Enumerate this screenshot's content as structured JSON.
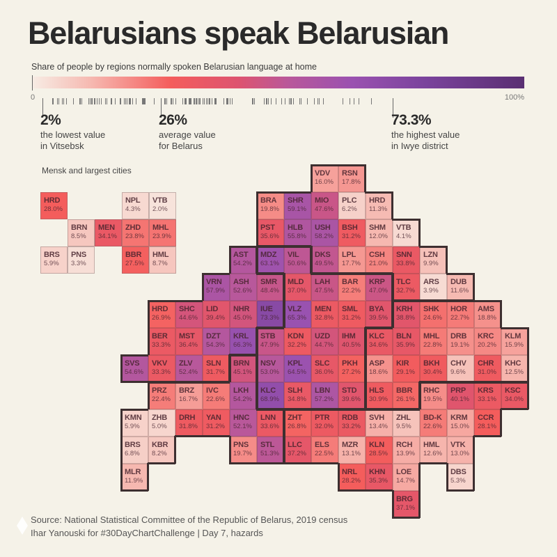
{
  "title": "Belarusians speak Belarusian",
  "subtitle": "Share of people by regions normally spoken Belarusian language at home",
  "scale": {
    "min_label": "0",
    "max_label": "100%",
    "min": 0,
    "max": 100,
    "colors": [
      "#f7ece4",
      "#f6b8b0",
      "#f45d5c",
      "#dd5470",
      "#b9589a",
      "#9a52b0",
      "#7a439c",
      "#5a2f72"
    ]
  },
  "annotations": [
    {
      "value": 2,
      "big": "2%",
      "line1": "the lowest value",
      "line2": "in Vitsebsk"
    },
    {
      "value": 26,
      "big": "26%",
      "line1": "average value",
      "line2": "for Belarus"
    },
    {
      "value": 73.3,
      "big": "73.3%",
      "line1": "the highest value",
      "line2": "in Iwye district"
    }
  ],
  "inset": {
    "title": "Mensk and largest cities",
    "rows": [
      [
        {
          "code": "HRD",
          "value": 28.0
        },
        {
          "code": "NPL",
          "value": 4.3
        },
        {
          "code": "VTB",
          "value": 2.0
        }
      ],
      [
        {
          "code": "BRN",
          "value": 8.5
        },
        {
          "code": "MEN",
          "value": 34.1
        },
        {
          "code": "ZHD",
          "value": 23.8
        },
        {
          "code": "MHL",
          "value": 23.9
        }
      ],
      [
        {
          "code": "BRS",
          "value": 5.9
        },
        {
          "code": "PNS",
          "value": 3.3
        },
        {
          "code": "BBR",
          "value": 27.5
        },
        {
          "code": "HML",
          "value": 8.7
        }
      ]
    ]
  },
  "map": {
    "rows": [
      [
        {
          "code": "VDV",
          "value": 16.0,
          "region": "vitsebsk"
        },
        {
          "code": "RSN",
          "value": 17.8,
          "region": "vitsebsk"
        }
      ],
      [
        {
          "code": "BRA",
          "value": 19.8,
          "region": "vitsebsk"
        },
        {
          "code": "SHR",
          "value": 59.1,
          "region": "vitsebsk"
        },
        {
          "code": "MIO",
          "value": 47.6,
          "region": "vitsebsk"
        },
        {
          "code": "PLC",
          "value": 6.2,
          "region": "vitsebsk"
        },
        {
          "code": "HRD",
          "value": 11.3,
          "region": "vitsebsk"
        }
      ],
      [
        {
          "code": "PST",
          "value": 35.6,
          "region": "vitsebsk"
        },
        {
          "code": "HLB",
          "value": 55.8,
          "region": "vitsebsk"
        },
        {
          "code": "USH",
          "value": 58.2,
          "region": "vitsebsk"
        },
        {
          "code": "BSH",
          "value": 31.2,
          "region": "vitsebsk"
        },
        {
          "code": "SHM",
          "value": 12.0,
          "region": "vitsebsk"
        },
        {
          "code": "VTB",
          "value": 4.1,
          "region": "vitsebsk"
        }
      ],
      [
        {
          "code": "AST",
          "value": 54.2,
          "region": "hrodna"
        },
        {
          "code": "MDZ",
          "value": 63.1,
          "region": "mensk"
        },
        {
          "code": "VIL",
          "value": 50.6,
          "region": "mensk"
        },
        {
          "code": "DKS",
          "value": 49.5,
          "region": "vitsebsk"
        },
        {
          "code": "LPL",
          "value": 17.7,
          "region": "vitsebsk"
        },
        {
          "code": "CSH",
          "value": 21.0,
          "region": "vitsebsk"
        },
        {
          "code": "SNN",
          "value": 33.8,
          "region": "vitsebsk"
        },
        {
          "code": "LZN",
          "value": 9.9,
          "region": "vitsebsk"
        }
      ],
      [
        {
          "code": "VRN",
          "value": 57.9,
          "region": "hrodna"
        },
        {
          "code": "ASH",
          "value": 52.6,
          "region": "hrodna"
        },
        {
          "code": "SMR",
          "value": 48.4,
          "region": "hrodna"
        },
        {
          "code": "MLD",
          "value": 37.0,
          "region": "mensk"
        },
        {
          "code": "LAH",
          "value": 47.5,
          "region": "mensk"
        },
        {
          "code": "BAR",
          "value": 22.2,
          "region": "mensk"
        },
        {
          "code": "KRP",
          "value": 47.0,
          "region": "mensk"
        },
        {
          "code": "TLC",
          "value": 32.7,
          "region": "vitsebsk"
        },
        {
          "code": "ARS",
          "value": 3.9,
          "region": "vitsebsk"
        },
        {
          "code": "DUB",
          "value": 11.6,
          "region": "vitsebsk"
        }
      ],
      [
        {
          "code": "HRD",
          "value": 26.9,
          "region": "hrodna"
        },
        {
          "code": "SHC",
          "value": 44.6,
          "region": "hrodna"
        },
        {
          "code": "LID",
          "value": 39.4,
          "region": "hrodna"
        },
        {
          "code": "NHR",
          "value": 45.0,
          "region": "hrodna"
        },
        {
          "code": "IUE",
          "value": 73.3,
          "region": "hrodna"
        },
        {
          "code": "VLZ",
          "value": 65.3,
          "region": "mensk"
        },
        {
          "code": "MEN",
          "value": 32.8,
          "region": "mensk"
        },
        {
          "code": "SML",
          "value": 31.2,
          "region": "mensk"
        },
        {
          "code": "BYA",
          "value": 39.5,
          "region": "mensk"
        },
        {
          "code": "KRH",
          "value": 38.8,
          "region": "mahilyow"
        },
        {
          "code": "SHK",
          "value": 24.6,
          "region": "mahilyow"
        },
        {
          "code": "HOR",
          "value": 22.7,
          "region": "mahilyow"
        },
        {
          "code": "AMS",
          "value": 18.8,
          "region": "mahilyow"
        }
      ],
      [
        {
          "code": "BER",
          "value": 33.3,
          "region": "hrodna"
        },
        {
          "code": "MST",
          "value": 36.4,
          "region": "hrodna"
        },
        {
          "code": "DZT",
          "value": 54.3,
          "region": "hrodna"
        },
        {
          "code": "KRL",
          "value": 66.3,
          "region": "hrodna"
        },
        {
          "code": "STB",
          "value": 47.9,
          "region": "mensk"
        },
        {
          "code": "KDN",
          "value": 32.2,
          "region": "mensk"
        },
        {
          "code": "UZD",
          "value": 44.7,
          "region": "mensk"
        },
        {
          "code": "IHM",
          "value": 40.5,
          "region": "mensk"
        },
        {
          "code": "KLC",
          "value": 34.6,
          "region": "mahilyow"
        },
        {
          "code": "BLN",
          "value": 35.9,
          "region": "mahilyow"
        },
        {
          "code": "MHL",
          "value": 22.8,
          "region": "mahilyow"
        },
        {
          "code": "DRB",
          "value": 19.1,
          "region": "mahilyow"
        },
        {
          "code": "KRC",
          "value": 20.2,
          "region": "mahilyow"
        },
        {
          "code": "KLM",
          "value": 15.9,
          "region": "mahilyow"
        }
      ],
      [
        {
          "code": "SVS",
          "value": 54.6,
          "region": "hrodna"
        },
        {
          "code": "VKV",
          "value": 33.3,
          "region": "hrodna"
        },
        {
          "code": "ZLV",
          "value": 52.4,
          "region": "hrodna"
        },
        {
          "code": "SLN",
          "value": 31.7,
          "region": "hrodna"
        },
        {
          "code": "BRN",
          "value": 45.1,
          "region": "brest"
        },
        {
          "code": "NSV",
          "value": 53.0,
          "region": "mensk"
        },
        {
          "code": "KPL",
          "value": 64.5,
          "region": "mensk"
        },
        {
          "code": "SLC",
          "value": 36.0,
          "region": "mensk"
        },
        {
          "code": "PKH",
          "value": 27.2,
          "region": "mensk"
        },
        {
          "code": "ASP",
          "value": 18.6,
          "region": "mahilyow"
        },
        {
          "code": "KIR",
          "value": 29.1,
          "region": "mahilyow"
        },
        {
          "code": "BKH",
          "value": 30.4,
          "region": "mahilyow"
        },
        {
          "code": "CHV",
          "value": 9.6,
          "region": "mahilyow"
        },
        {
          "code": "CHR",
          "value": 31.0,
          "region": "mahilyow"
        },
        {
          "code": "KHC",
          "value": 12.5,
          "region": "mahilyow"
        }
      ],
      [
        {
          "code": "PRZ",
          "value": 22.4,
          "region": "brest"
        },
        {
          "code": "BRZ",
          "value": 16.7,
          "region": "brest"
        },
        {
          "code": "IVC",
          "value": 22.6,
          "region": "brest"
        },
        {
          "code": "LKH",
          "value": 54.2,
          "region": "brest"
        },
        {
          "code": "KLC",
          "value": 68.9,
          "region": "mensk"
        },
        {
          "code": "SLH",
          "value": 34.8,
          "region": "mensk"
        },
        {
          "code": "LBN",
          "value": 57.2,
          "region": "mensk"
        },
        {
          "code": "STD",
          "value": 39.6,
          "region": "mensk"
        },
        {
          "code": "HLS",
          "value": 30.9,
          "region": "mahilyow"
        },
        {
          "code": "BBR",
          "value": 26.1,
          "region": "mahilyow"
        },
        {
          "code": "RHC",
          "value": 19.5,
          "region": "homel"
        },
        {
          "code": "PRP",
          "value": 40.1,
          "region": "homel"
        },
        {
          "code": "KRS",
          "value": 33.1,
          "region": "homel"
        },
        {
          "code": "KSC",
          "value": 34.0,
          "region": "homel"
        }
      ],
      [
        {
          "code": "KMN",
          "value": 5.9,
          "region": "brest"
        },
        {
          "code": "ZHB",
          "value": 5.0,
          "region": "brest"
        },
        {
          "code": "DRH",
          "value": 31.8,
          "region": "brest"
        },
        {
          "code": "YAN",
          "value": 31.2,
          "region": "brest"
        },
        {
          "code": "HNC",
          "value": 52.1,
          "region": "brest"
        },
        {
          "code": "LNN",
          "value": 33.6,
          "region": "brest"
        },
        {
          "code": "ZHT",
          "value": 26.8,
          "region": "homel"
        },
        {
          "code": "PTR",
          "value": 32.0,
          "region": "homel"
        },
        {
          "code": "RDB",
          "value": 33.2,
          "region": "homel"
        },
        {
          "code": "SVH",
          "value": 13.4,
          "region": "homel"
        },
        {
          "code": "ZHL",
          "value": 9.5,
          "region": "homel"
        },
        {
          "code": "BD-K",
          "value": 22.6,
          "region": "homel"
        },
        {
          "code": "KRM",
          "value": 15.0,
          "region": "homel"
        },
        {
          "code": "CCR",
          "value": 28.1,
          "region": "homel"
        }
      ],
      [
        {
          "code": "BRS",
          "value": 6.8,
          "region": "brest"
        },
        {
          "code": "KBR",
          "value": 8.2,
          "region": "brest"
        },
        {
          "code": "PNS",
          "value": 19.7,
          "region": "brest"
        },
        {
          "code": "STL",
          "value": 51.3,
          "region": "brest"
        },
        {
          "code": "LLC",
          "value": 37.2,
          "region": "homel"
        },
        {
          "code": "ELS",
          "value": 22.5,
          "region": "homel"
        },
        {
          "code": "MZR",
          "value": 13.1,
          "region": "homel"
        },
        {
          "code": "KLN",
          "value": 28.5,
          "region": "homel"
        },
        {
          "code": "RCH",
          "value": 13.9,
          "region": "homel"
        },
        {
          "code": "HML",
          "value": 12.6,
          "region": "homel"
        },
        {
          "code": "VTK",
          "value": 13.0,
          "region": "homel"
        }
      ],
      [
        {
          "code": "MLR",
          "value": 11.9,
          "region": "brest"
        },
        {
          "code": "NRL",
          "value": 28.2,
          "region": "homel"
        },
        {
          "code": "KHN",
          "value": 35.3,
          "region": "homel"
        },
        {
          "code": "LOE",
          "value": 14.7,
          "region": "homel"
        },
        {
          "code": "DBS",
          "value": 5.3,
          "region": "homel"
        }
      ],
      [
        {
          "code": "BRG",
          "value": 37.1,
          "region": "homel"
        }
      ]
    ]
  },
  "footer": {
    "source": "Source: National Statistical Committee of the Republic of Belarus, 2019 census",
    "credit": "Ihar Yanouski for #30DayChartChallenge | Day 7, hazards"
  }
}
